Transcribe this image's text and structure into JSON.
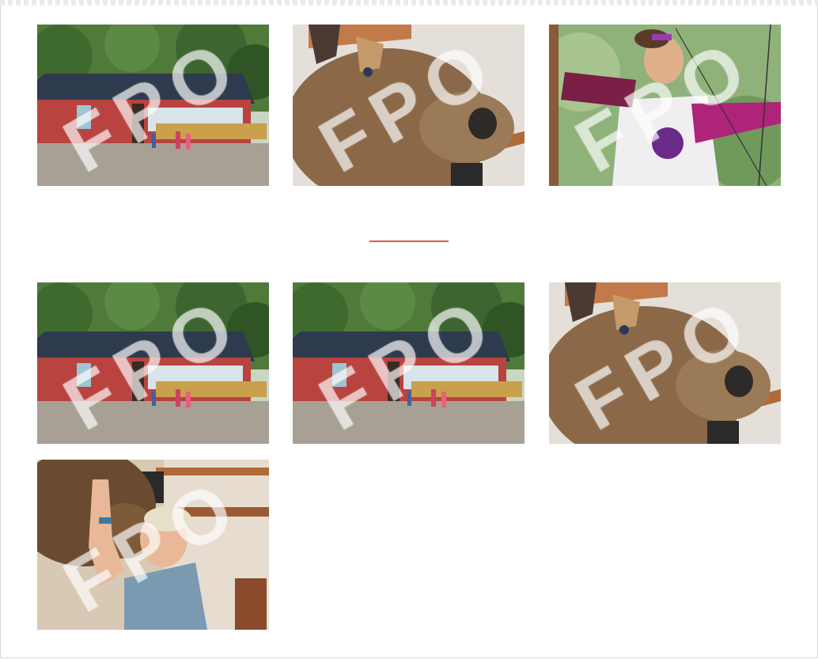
{
  "gallery": {
    "watermark": "FPO",
    "divider_color": "#e05a3f",
    "rows": [
      {
        "photos": [
          {
            "subject": "lodge-building"
          },
          {
            "subject": "moose-head"
          },
          {
            "subject": "archery-girl"
          }
        ]
      },
      {
        "photos": [
          {
            "subject": "lodge-building"
          },
          {
            "subject": "lodge-building"
          },
          {
            "subject": "moose-head"
          }
        ]
      },
      {
        "photos": [
          {
            "subject": "woman-with-moose"
          }
        ]
      }
    ]
  }
}
